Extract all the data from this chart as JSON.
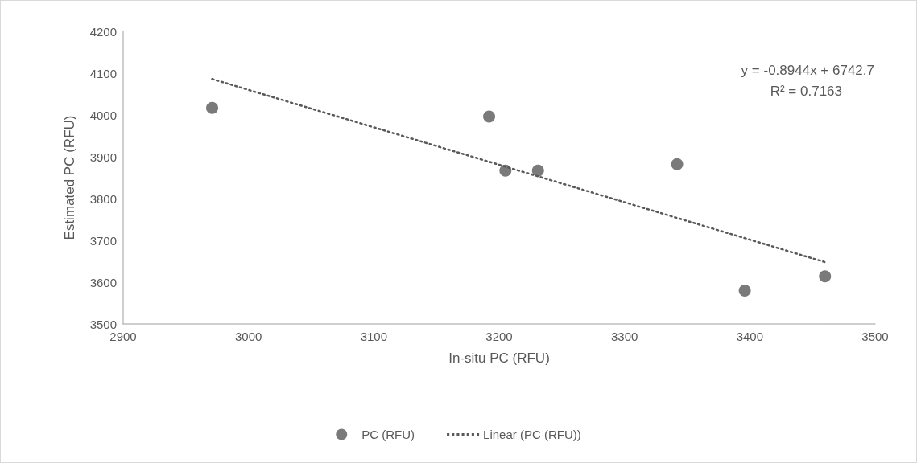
{
  "chart_data": {
    "type": "scatter",
    "xlabel": "In-situ PC (RFU)",
    "ylabel": "Estimated PC (RFU)",
    "series": [
      {
        "name": "PC (RFU)",
        "color": "#595959",
        "marker": "circle",
        "x": [
          2971,
          3192,
          3205,
          3231,
          3342,
          3396,
          3460
        ],
        "values": [
          4017,
          3996,
          3867,
          3867,
          3882,
          3580,
          3614
        ]
      },
      {
        "name": "Linear (PC (RFU))",
        "type": "line",
        "color": "#595959",
        "marker": "none",
        "line_style": "dotted",
        "x": [
          2971,
          3460
        ],
        "values": [
          4086,
          3648
        ]
      }
    ],
    "xlim": [
      2900,
      3500
    ],
    "xticks": [
      2900,
      3000,
      3100,
      3200,
      3300,
      3400,
      3500
    ],
    "ylim": [
      3500,
      4200
    ],
    "yticks": [
      3500,
      3600,
      3700,
      3800,
      3900,
      4000,
      4100,
      4200
    ],
    "grid": false,
    "legend": "bottom",
    "annotations": [
      "y = -0.8944x + 6742.7",
      "R² = 0.7163"
    ]
  }
}
